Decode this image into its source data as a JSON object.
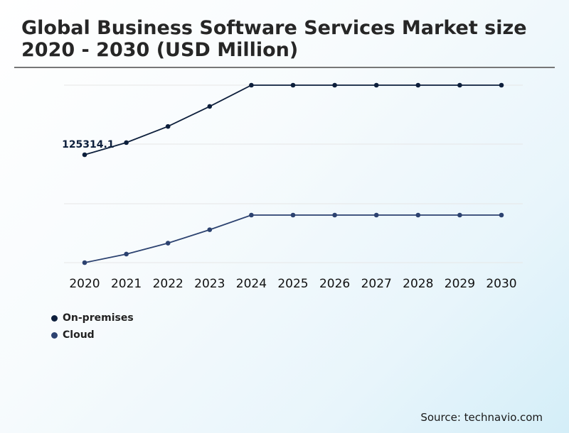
{
  "title": "Global Business Software Services Market size 2020 - 2030 (USD Million)",
  "source": "Source: technavio.com",
  "colors": {
    "on_premises": "#0d1f3c",
    "cloud": "#2c4270",
    "gridline": "#e6e6e6"
  },
  "legend": [
    {
      "name": "On-premises",
      "color": "#0d1f3c"
    },
    {
      "name": "Cloud",
      "color": "#2c4270"
    }
  ],
  "chart_data": {
    "type": "line",
    "title": "Global Business Software Services Market size 2020 - 2030 (USD Million)",
    "xlabel": "",
    "ylabel": "",
    "grid": true,
    "legend_placement": "bottom-left",
    "y_axis_labels_visible": false,
    "categories": [
      "2020",
      "2021",
      "2022",
      "2023",
      "2024",
      "2025",
      "2026",
      "2027",
      "2028",
      "2029",
      "2030"
    ],
    "annotations": [
      {
        "series": "On-premises",
        "x": "2021",
        "text": "125314.1"
      }
    ],
    "series": [
      {
        "name": "On-premises",
        "values": [
          115000,
          125314.1,
          139000,
          156000,
          174000,
          174000,
          174000,
          174000,
          174000,
          174000,
          174000
        ]
      },
      {
        "name": "Cloud",
        "values": [
          0,
          7000,
          16000,
          27000,
          39000,
          39000,
          39000,
          39000,
          39000,
          39000,
          39000
        ]
      }
    ]
  }
}
